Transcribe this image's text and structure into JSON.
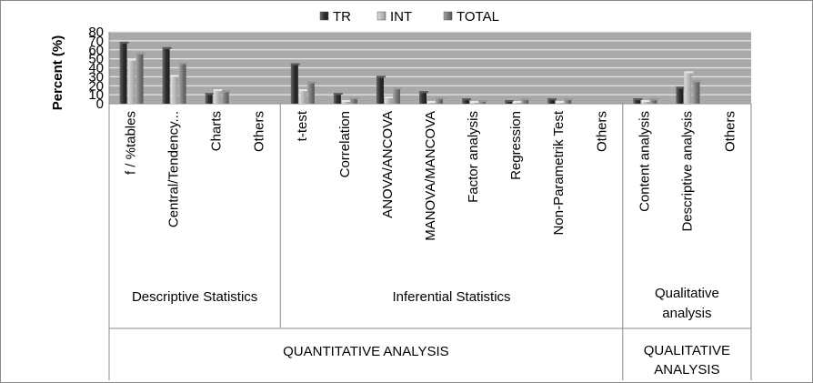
{
  "chart_data": {
    "type": "bar",
    "ylabel": "Percent (%)",
    "ylim": [
      0,
      80
    ],
    "yticks": [
      0,
      10,
      20,
      30,
      40,
      50,
      60,
      70,
      80
    ],
    "grid": true,
    "legend_position": "top",
    "categories": [
      "f / %tables",
      "Central/Tendency...",
      "Charts",
      "Others",
      "t-test",
      "Correlation",
      "ANOVA/ANCOVA",
      "MANOVA/MANCOVA",
      "Factor analysis",
      "Regression",
      "Non-Parametrik Test",
      "Others",
      "Content analysis",
      "Descriptive analysis",
      "Others"
    ],
    "series": [
      {
        "name": "TR",
        "values": [
          67,
          61,
          10,
          0,
          43,
          10,
          29,
          12,
          4,
          2,
          4,
          0,
          4,
          17,
          0
        ]
      },
      {
        "name": "INT",
        "values": [
          48,
          30,
          14,
          0,
          14,
          2,
          6,
          1,
          1,
          1,
          1,
          0,
          2,
          34,
          0
        ]
      },
      {
        "name": "TOTAL",
        "values": [
          55,
          44,
          13,
          0,
          23,
          5,
          16,
          5,
          2,
          4,
          4,
          0,
          4,
          24,
          0
        ]
      }
    ],
    "colors": {
      "TR": "#3c3c3c",
      "INT": "#c4c4c4",
      "TOTAL": "#808080",
      "plot_bg": "#a9a9a9",
      "grid": "#e6e6e6"
    },
    "subgroups": [
      "Descriptive Statistics",
      "Inferential Statistics",
      "Qualitative analysis"
    ],
    "groups": [
      "QUANTITATIVE ANALYSIS",
      "QUALITATIVE ANALYSIS"
    ]
  }
}
